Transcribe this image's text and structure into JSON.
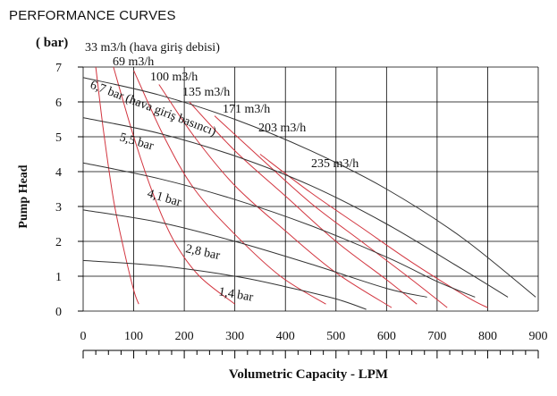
{
  "chart_data": {
    "type": "line",
    "title": "PERFORMANCE CURVES",
    "unit_label": "( bar)",
    "xlabel": "Volumetric Capacity - LPM",
    "ylabel": "Pump Head",
    "xlim": [
      0,
      900
    ],
    "ylim": [
      0,
      7
    ],
    "x_ticks": [
      "0",
      "100",
      "200",
      "300",
      "400",
      "500",
      "600",
      "700",
      "800",
      "900"
    ],
    "y_ticks": [
      "0",
      "1",
      "2",
      "3",
      "4",
      "5",
      "6",
      "7"
    ],
    "grid": true,
    "colors": {
      "pressure": "#333333",
      "air": "#d2353f",
      "grid": "#000000",
      "text": "#111111"
    },
    "pressure_curves": [
      {
        "name": "6,7 bar (hava giriş basıncı)",
        "label": "6,7 bar (hava giriş basıncı)",
        "points": [
          [
            0,
            6.7
          ],
          [
            150,
            6.2
          ],
          [
            300,
            5.5
          ],
          [
            450,
            4.6
          ],
          [
            600,
            3.5
          ],
          [
            750,
            2.1
          ],
          [
            895,
            0.4
          ]
        ]
      },
      {
        "name": "5,5 bar",
        "label": "5,5 bar",
        "points": [
          [
            0,
            5.55
          ],
          [
            150,
            5.1
          ],
          [
            300,
            4.45
          ],
          [
            450,
            3.6
          ],
          [
            600,
            2.5
          ],
          [
            750,
            1.2
          ],
          [
            840,
            0.4
          ]
        ]
      },
      {
        "name": "4,1 bar",
        "label": "4,1 bar",
        "points": [
          [
            0,
            4.25
          ],
          [
            150,
            3.8
          ],
          [
            300,
            3.2
          ],
          [
            450,
            2.45
          ],
          [
            600,
            1.55
          ],
          [
            700,
            0.85
          ],
          [
            775,
            0.4
          ]
        ]
      },
      {
        "name": "2,8 bar",
        "label": "2,8 bar",
        "points": [
          [
            0,
            2.9
          ],
          [
            150,
            2.55
          ],
          [
            300,
            2.0
          ],
          [
            450,
            1.35
          ],
          [
            600,
            0.65
          ],
          [
            680,
            0.4
          ]
        ]
      },
      {
        "name": "1,4 bar",
        "label": "1,4 bar",
        "points": [
          [
            0,
            1.45
          ],
          [
            150,
            1.3
          ],
          [
            300,
            1.0
          ],
          [
            400,
            0.7
          ],
          [
            500,
            0.35
          ],
          [
            560,
            0.05
          ]
        ]
      }
    ],
    "air_curves": [
      {
        "name": "33 m3/h (hava giriş debisi)",
        "label": "33 m3/h (hava giriş debisi)",
        "points": [
          [
            25,
            7.0
          ],
          [
            40,
            5.2
          ],
          [
            60,
            3.2
          ],
          [
            80,
            1.8
          ],
          [
            100,
            0.6
          ],
          [
            110,
            0.2
          ]
        ]
      },
      {
        "name": "69 m3/h",
        "label": "69 m3/h",
        "points": [
          [
            60,
            7.0
          ],
          [
            100,
            5.0
          ],
          [
            140,
            3.3
          ],
          [
            180,
            2.0
          ],
          [
            230,
            1.0
          ],
          [
            300,
            0.2
          ]
        ]
      },
      {
        "name": "100 m3/h",
        "label": "100 m3/h",
        "points": [
          [
            100,
            6.9
          ],
          [
            160,
            5.0
          ],
          [
            220,
            3.5
          ],
          [
            300,
            2.2
          ],
          [
            390,
            1.0
          ],
          [
            480,
            0.2
          ]
        ]
      },
      {
        "name": "135 m3/h",
        "label": "135 m3/h",
        "points": [
          [
            150,
            6.5
          ],
          [
            220,
            5.0
          ],
          [
            300,
            3.6
          ],
          [
            400,
            2.3
          ],
          [
            500,
            1.1
          ],
          [
            610,
            0.1
          ]
        ]
      },
      {
        "name": "171 m3/h",
        "label": "171 m3/h",
        "points": [
          [
            210,
            6.0
          ],
          [
            300,
            4.6
          ],
          [
            400,
            3.3
          ],
          [
            500,
            2.0
          ],
          [
            600,
            0.9
          ],
          [
            660,
            0.2
          ]
        ]
      },
      {
        "name": "203 m3/h",
        "label": "203 m3/h",
        "points": [
          [
            260,
            5.6
          ],
          [
            350,
            4.4
          ],
          [
            450,
            3.1
          ],
          [
            550,
            2.0
          ],
          [
            650,
            0.9
          ],
          [
            720,
            0.1
          ]
        ]
      },
      {
        "name": "235 m3/h",
        "label": "235 m3/h",
        "points": [
          [
            350,
            4.5
          ],
          [
            450,
            3.4
          ],
          [
            550,
            2.4
          ],
          [
            650,
            1.4
          ],
          [
            760,
            0.4
          ],
          [
            800,
            0.1
          ]
        ]
      }
    ]
  }
}
